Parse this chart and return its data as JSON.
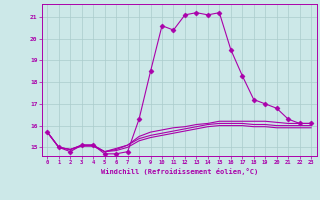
{
  "background_color": "#cce8e8",
  "grid_color": "#aacccc",
  "line_color": "#aa00aa",
  "xlabel": "Windchill (Refroidissement éolien,°C)",
  "ylabel_ticks": [
    15,
    16,
    17,
    18,
    19,
    20,
    21
  ],
  "xticks": [
    0,
    1,
    2,
    3,
    4,
    5,
    6,
    7,
    8,
    9,
    10,
    11,
    12,
    13,
    14,
    15,
    16,
    17,
    18,
    19,
    20,
    21,
    22,
    23
  ],
  "xlim": [
    -0.5,
    23.5
  ],
  "ylim": [
    14.6,
    21.6
  ],
  "series": [
    [
      15.7,
      15.0,
      14.8,
      15.1,
      15.1,
      14.7,
      14.7,
      14.8,
      16.3,
      18.5,
      20.6,
      20.4,
      21.1,
      21.2,
      21.1,
      21.2,
      19.5,
      18.3,
      17.2,
      17.0,
      16.8,
      16.3,
      16.1,
      16.1
    ],
    [
      15.7,
      15.0,
      14.9,
      15.1,
      15.1,
      14.8,
      14.9,
      15.1,
      15.5,
      15.7,
      15.8,
      15.9,
      15.95,
      16.05,
      16.1,
      16.2,
      16.2,
      16.2,
      16.2,
      16.2,
      16.15,
      16.1,
      16.1,
      16.1
    ],
    [
      15.7,
      15.0,
      14.9,
      15.1,
      15.1,
      14.8,
      14.95,
      15.1,
      15.4,
      15.55,
      15.65,
      15.75,
      15.85,
      15.95,
      16.05,
      16.1,
      16.1,
      16.1,
      16.05,
      16.05,
      16.0,
      16.0,
      16.0,
      16.0
    ],
    [
      15.7,
      15.0,
      14.9,
      15.05,
      15.05,
      14.8,
      14.85,
      15.0,
      15.3,
      15.45,
      15.55,
      15.65,
      15.75,
      15.85,
      15.95,
      16.0,
      16.0,
      16.0,
      15.95,
      15.95,
      15.9,
      15.9,
      15.9,
      15.9
    ]
  ],
  "marker": "D",
  "markersize": 2.5,
  "linewidth": 0.8,
  "tick_color": "#aa00aa",
  "spine_color": "#aa00aa"
}
